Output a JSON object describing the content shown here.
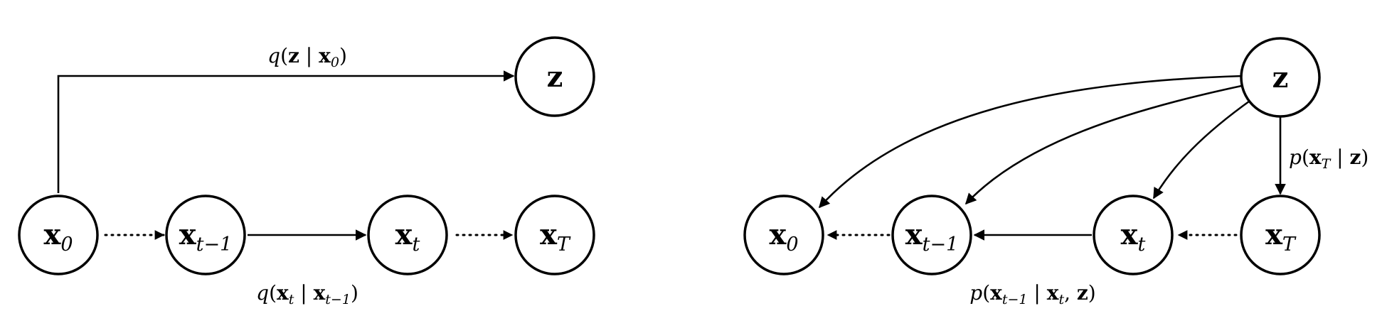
{
  "left_panel": {
    "nodes": {
      "z": "z",
      "x0": {
        "main": "x",
        "sub": "0"
      },
      "xt1": {
        "main": "x",
        "sub": "t−1"
      },
      "xt": {
        "main": "x",
        "sub": "t"
      },
      "xT": {
        "main": "x",
        "sub": "T"
      }
    },
    "labels": {
      "top": {
        "fn": "q",
        "open": "(",
        "a": "z",
        "bar": " | ",
        "b": "x",
        "b_sub": "0",
        "close": ")"
      },
      "bottom": {
        "fn": "q",
        "open": "(",
        "a": "x",
        "a_sub": "t",
        "bar": " | ",
        "b": "x",
        "b_sub": "t−1",
        "close": ")"
      }
    }
  },
  "right_panel": {
    "nodes": {
      "z": "z",
      "x0": {
        "main": "x",
        "sub": "0"
      },
      "xt1": {
        "main": "x",
        "sub": "t−1"
      },
      "xt": {
        "main": "x",
        "sub": "t"
      },
      "xT": {
        "main": "x",
        "sub": "T"
      }
    },
    "labels": {
      "side": {
        "fn": "p",
        "open": "(",
        "a": "x",
        "a_sub": "T",
        "bar": " | ",
        "b": "z",
        "close": ")"
      },
      "bottom": {
        "fn": "p",
        "open": "(",
        "a": "x",
        "a_sub": "t−1",
        "bar": " | ",
        "b": "x",
        "b_sub": "t",
        "comma": ", ",
        "c": "z",
        "close": ")"
      }
    }
  }
}
